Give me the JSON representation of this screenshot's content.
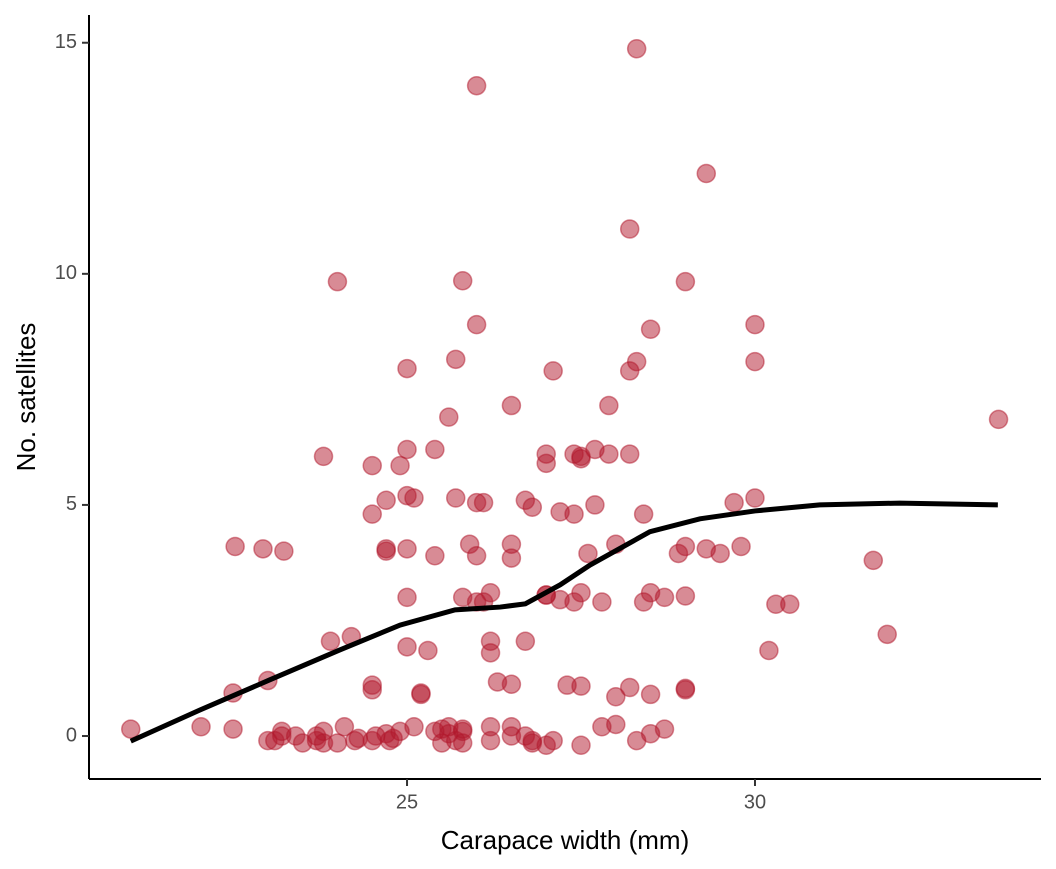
{
  "chart_data": {
    "type": "scatter",
    "x_label": "Carapace width (mm)",
    "y_label": "No. satellites",
    "xlim": [
      20.43,
      34.11
    ],
    "ylim": [
      -0.93,
      15.6
    ],
    "xticks": [
      25,
      30
    ],
    "yticks": [
      0,
      5,
      10,
      15
    ],
    "point_color": "#b2182b",
    "line_color": "#000000",
    "x": [
      21.03,
      22.04,
      22.53,
      22.5,
      22.5,
      22.93,
      23.23,
      23.0,
      23.0,
      23.1,
      23.2,
      23.2,
      23.4,
      23.5,
      23.7,
      23.7,
      23.8,
      23.8,
      23.8,
      24.0,
      23.9,
      24.2,
      24.0,
      24.1,
      24.25,
      24.3,
      24.5,
      24.5,
      24.5,
      24.5,
      24.5,
      24.55,
      24.7,
      24.75,
      24.8,
      24.9,
      24.7,
      24.7,
      24.7,
      24.9,
      25.0,
      25.0,
      25.0,
      25.1,
      25.0,
      25.0,
      25.0,
      25.2,
      25.2,
      25.1,
      25.3,
      25.4,
      25.4,
      25.4,
      25.5,
      25.5,
      25.6,
      25.7,
      25.8,
      25.8,
      25.8,
      25.6,
      25.6,
      25.7,
      25.8,
      26.0,
      26.0,
      25.7,
      26.0,
      26.1,
      25.9,
      26.0,
      25.8,
      26.0,
      26.1,
      26.2,
      26.2,
      26.2,
      26.3,
      26.5,
      26.2,
      26.2,
      26.5,
      26.5,
      26.7,
      26.8,
      26.8,
      26.5,
      26.5,
      26.5,
      26.7,
      26.8,
      26.7,
      27.0,
      27.0,
      27.1,
      27.0,
      27.0,
      27.2,
      27.4,
      27.2,
      27.4,
      27.5,
      27.3,
      27.5,
      27.0,
      27.1,
      27.4,
      27.5,
      27.5,
      27.7,
      27.9,
      27.7,
      27.6,
      27.8,
      27.9,
      27.5,
      27.8,
      28.0,
      28.0,
      28.2,
      28.0,
      28.2,
      28.3,
      28.2,
      28.3,
      28.2,
      28.4,
      28.4,
      28.5,
      28.7,
      28.5,
      28.3,
      28.5,
      28.7,
      28.5,
      29.0,
      29.0,
      29.0,
      28.9,
      29.0,
      29.0,
      29.3,
      29.3,
      29.5,
      29.7,
      29.8,
      30.0,
      30.0,
      30.0,
      30.2,
      30.3,
      30.5,
      31.7,
      31.9,
      33.5
    ],
    "y": [
      0.15,
      0.2,
      4.1,
      0.93,
      0.15,
      4.05,
      4.0,
      1.2,
      -0.1,
      -0.1,
      0.0,
      0.1,
      0.0,
      -0.15,
      -0.1,
      0.0,
      -0.15,
      0.1,
      6.05,
      9.83,
      2.05,
      2.15,
      -0.15,
      0.2,
      -0.1,
      -0.05,
      5.85,
      4.8,
      1.1,
      1.0,
      -0.1,
      0.0,
      0.05,
      -0.1,
      -0.05,
      0.1,
      4.0,
      4.05,
      5.1,
      5.85,
      7.95,
      6.2,
      5.2,
      5.15,
      4.05,
      3.0,
      1.93,
      0.9,
      0.93,
      0.2,
      1.85,
      6.2,
      3.9,
      0.1,
      -0.15,
      0.15,
      0.05,
      -0.1,
      0.1,
      -0.15,
      0.15,
      0.2,
      6.9,
      8.15,
      9.85,
      14.07,
      8.9,
      5.15,
      5.05,
      5.05,
      4.15,
      3.9,
      3.0,
      2.9,
      2.9,
      3.1,
      2.05,
      1.8,
      1.17,
      1.12,
      0.2,
      -0.1,
      0.2,
      0.0,
      0.0,
      -0.15,
      -0.1,
      7.15,
      4.15,
      3.85,
      5.1,
      4.95,
      2.05,
      5.9,
      6.1,
      7.9,
      3.05,
      3.05,
      4.85,
      4.8,
      2.95,
      2.9,
      3.1,
      1.1,
      1.08,
      -0.2,
      -0.1,
      6.1,
      6.0,
      6.05,
      6.2,
      6.1,
      5.0,
      3.95,
      2.9,
      7.15,
      -0.2,
      0.2,
      0.25,
      0.85,
      1.05,
      4.15,
      10.97,
      14.87,
      7.9,
      8.1,
      6.1,
      4.8,
      2.9,
      3.1,
      3.0,
      8.8,
      -0.1,
      0.05,
      0.15,
      0.9,
      1.03,
      1.0,
      3.03,
      3.95,
      4.1,
      9.83,
      12.17,
      4.05,
      3.95,
      5.05,
      4.1,
      5.15,
      8.9,
      8.1,
      1.85,
      2.85,
      2.85,
      3.8,
      2.2,
      6.85
    ],
    "smooth_x": [
      21.03,
      22.02,
      23.02,
      24.03,
      24.9,
      25.69,
      26.34,
      26.7,
      27.2,
      27.63,
      28.49,
      29.21,
      30.0,
      30.93,
      32.08,
      33.49
    ],
    "smooth_y": [
      -0.11,
      0.56,
      1.21,
      1.86,
      2.4,
      2.73,
      2.79,
      2.86,
      3.27,
      3.7,
      4.42,
      4.7,
      4.87,
      5.0,
      5.04,
      5.0
    ]
  }
}
